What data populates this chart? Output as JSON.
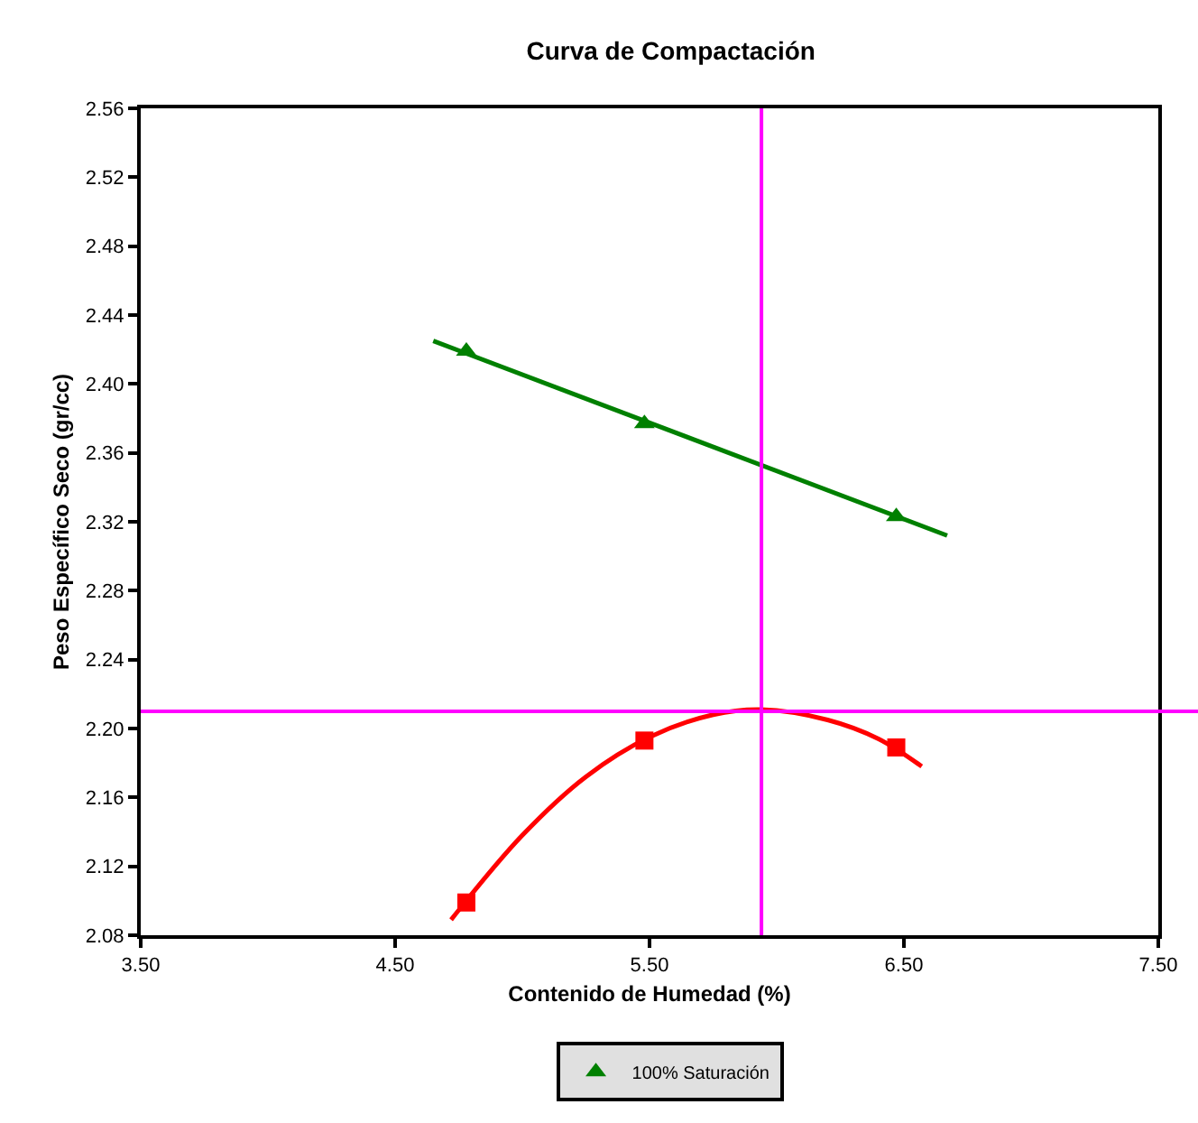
{
  "chart_data": {
    "type": "scatter",
    "title": "Curva de Compactación",
    "xlabel": "Contenido de Humedad (%)",
    "ylabel": "Peso Específico Seco (gr/cc)",
    "xlim": [
      3.5,
      7.5
    ],
    "xticks": [
      {
        "value": 3.5,
        "label": "3.50"
      },
      {
        "value": 4.5,
        "label": "4.50"
      },
      {
        "value": 5.5,
        "label": "5.50"
      },
      {
        "value": 6.5,
        "label": "6.50"
      },
      {
        "value": 7.5,
        "label": "7.50"
      }
    ],
    "ylim": [
      2.08,
      2.56
    ],
    "yticks": [
      {
        "value": 2.08,
        "label": "2.08"
      },
      {
        "value": 2.12,
        "label": "2.12"
      },
      {
        "value": 2.16,
        "label": "2.16"
      },
      {
        "value": 2.2,
        "label": "2.20"
      },
      {
        "value": 2.24,
        "label": "2.24"
      },
      {
        "value": 2.28,
        "label": "2.28"
      },
      {
        "value": 2.32,
        "label": "2.32"
      },
      {
        "value": 2.36,
        "label": "2.36"
      },
      {
        "value": 2.4,
        "label": "2.40"
      },
      {
        "value": 2.44,
        "label": "2.44"
      },
      {
        "value": 2.48,
        "label": "2.48"
      },
      {
        "value": 2.52,
        "label": "2.52"
      },
      {
        "value": 2.56,
        "label": "2.56"
      }
    ],
    "grid": false,
    "legend": "bottom",
    "series": [
      {
        "type": "line",
        "color": "#ff0000",
        "marker": "none",
        "x": [
          4.72,
          5.0,
          5.25,
          5.5,
          5.75,
          5.94,
          6.2,
          6.4,
          6.57
        ],
        "values": [
          2.089,
          2.138,
          2.172,
          2.195,
          2.208,
          2.211,
          2.205,
          2.194,
          2.178
        ]
      },
      {
        "color": "#ff0000",
        "marker": "square",
        "x": [
          4.78,
          5.48,
          6.47
        ],
        "values": [
          2.099,
          2.193,
          2.189
        ]
      },
      {
        "type": "line",
        "color": "#008000",
        "marker": "none",
        "x": [
          4.65,
          6.67
        ],
        "values": [
          2.425,
          2.312
        ]
      },
      {
        "name": "100% Saturación",
        "color": "#008000",
        "marker": "triangle",
        "x": [
          4.78,
          5.48,
          6.47
        ],
        "values": [
          2.419,
          2.377,
          2.323
        ]
      }
    ],
    "ref_lines": [
      {
        "axis": "x",
        "value": 5.94,
        "color": "#ff00ff"
      },
      {
        "axis": "y",
        "value": 2.21,
        "color": "#ff00ff"
      }
    ]
  }
}
